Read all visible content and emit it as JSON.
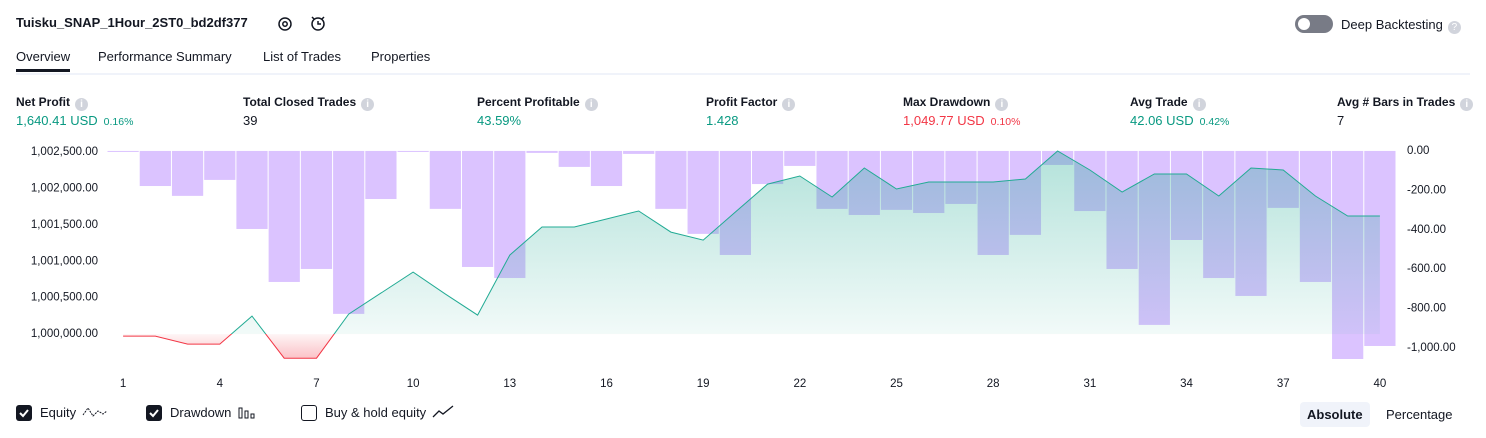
{
  "header": {
    "title": "Tuisku_SNAP_1Hour_2ST0_bd2df377",
    "deep_backtesting": "Deep Backtesting"
  },
  "tabs": [
    "Overview",
    "Performance Summary",
    "List of Trades",
    "Properties"
  ],
  "metrics": [
    {
      "label": "Net Profit",
      "value": "1,640.41 USD",
      "sub": "0.16%"
    },
    {
      "label": "Total Closed Trades",
      "value": "39"
    },
    {
      "label": "Percent Profitable",
      "value": "43.59%"
    },
    {
      "label": "Profit Factor",
      "value": "1.428"
    },
    {
      "label": "Max Drawdown",
      "value": "1,049.77 USD",
      "sub": "0.10%"
    },
    {
      "label": "Avg Trade",
      "value": "42.06 USD",
      "sub": "0.42%"
    },
    {
      "label": "Avg # Bars in Trades",
      "value": "7"
    }
  ],
  "chart_data": {
    "type": "line",
    "x": [
      1,
      2,
      3,
      4,
      5,
      6,
      7,
      8,
      9,
      10,
      11,
      12,
      13,
      14,
      15,
      16,
      17,
      18,
      19,
      20,
      21,
      22,
      23,
      24,
      25,
      26,
      27,
      28,
      29,
      30,
      31,
      32,
      33,
      34,
      35,
      36,
      37,
      38,
      39,
      40
    ],
    "xlim": [
      0.5,
      40.5
    ],
    "xticks": [
      1,
      4,
      7,
      10,
      13,
      16,
      19,
      22,
      25,
      28,
      31,
      34,
      37,
      40
    ],
    "ylim": [
      999480,
      1002555
    ],
    "yticks": [
      {
        "value": 1000000,
        "label": "1,000,000.00"
      },
      {
        "value": 1000500,
        "label": "1,000,500.00"
      },
      {
        "value": 1001000,
        "label": "1,001,000.00"
      },
      {
        "value": 1001500,
        "label": "1,001,500.00"
      },
      {
        "value": 1002000,
        "label": "1,002,000.00"
      },
      {
        "value": 1002500,
        "label": "1,002,500.00"
      }
    ],
    "y2lim": [
      -1122,
      15
    ],
    "y2ticks": [
      {
        "value": 0,
        "label": "0.00"
      },
      {
        "value": -200,
        "label": "-200.00"
      },
      {
        "value": -400,
        "label": "-400.00"
      },
      {
        "value": -600,
        "label": "-600.00"
      },
      {
        "value": -800,
        "label": "-800.00"
      },
      {
        "value": -1000,
        "label": "-1,000.00"
      }
    ],
    "series": [
      {
        "name": "Equity",
        "color": "#22ab94",
        "negative_color": "#f23645",
        "values": [
          999973,
          999973,
          999863,
          999863,
          1000247,
          999670,
          999670,
          1000275,
          1000563,
          1000852,
          1000549,
          1000261,
          1001085,
          1001470,
          1001470,
          1001580,
          1001690,
          1001401,
          1001291,
          1001676,
          1002060,
          1002170,
          1001882,
          1002280,
          1001992,
          1002088,
          1002088,
          1002088,
          1002129,
          1002514,
          1002253,
          1001951,
          1002198,
          1002198,
          1001896,
          1002280,
          1002253,
          1001896,
          1001621,
          1001621
        ]
      },
      {
        "name": "Drawdown",
        "color": "#c39bff",
        "axis": "y2",
        "values": [
          -5,
          -178,
          -228,
          -147,
          -396,
          -665,
          -599,
          -827,
          -244,
          -5,
          -294,
          -589,
          -645,
          -10,
          -81,
          -178,
          -15,
          -294,
          -421,
          -528,
          -168,
          -76,
          -294,
          -325,
          -299,
          -315,
          -269,
          -528,
          -426,
          -71,
          -305,
          -599,
          -883,
          -452,
          -645,
          -736,
          -289,
          -665,
          -1056,
          -990
        ]
      }
    ],
    "extra_legend": "Buy & hold equity"
  },
  "view_modes": [
    "Absolute",
    "Percentage"
  ]
}
